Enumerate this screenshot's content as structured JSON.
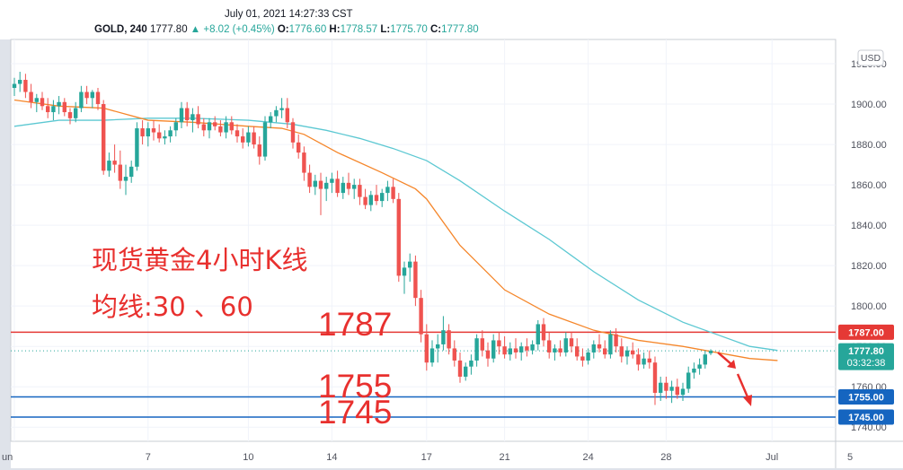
{
  "header": {
    "datetime": "July 01, 2021 14:27:33 CST",
    "symbol": "GOLD, 240",
    "last": "1777.80",
    "change": "▲ +8.02 (+0.45%)",
    "o_label": "O:",
    "o": "1776.60",
    "h_label": "H:",
    "h": "1778.57",
    "l_label": "L:",
    "l": "1775.70",
    "c_label": "C:",
    "c": "1777.80"
  },
  "currency_badge": "USD",
  "annotations": {
    "title": "现货黄金4小时K线",
    "subtitle": "均线:30 、60",
    "level_1787": "1787",
    "level_1755": "1755",
    "level_1745": "1745"
  },
  "colors": {
    "up": "#26a69a",
    "down": "#ef5350",
    "ma30": "#f5862a",
    "ma60": "#5cc8d2",
    "resistance": "#e53935",
    "support": "#1565c0",
    "annotation_text": "#e8302e"
  },
  "chart_data": {
    "type": "candlestick",
    "ylim": [
      1733,
      1932
    ],
    "y_ticks": [
      "1920.00",
      "1900.00",
      "1880.00",
      "1860.00",
      "1840.00",
      "1820.00",
      "1800.00",
      "1780.00",
      "1760.00",
      "1740.00"
    ],
    "x_ticks": [
      {
        "label": "un",
        "i": 0
      },
      {
        "label": "7",
        "i": 24
      },
      {
        "label": "10",
        "i": 42
      },
      {
        "label": "14",
        "i": 57
      },
      {
        "label": "17",
        "i": 74
      },
      {
        "label": "21",
        "i": 88
      },
      {
        "label": "24",
        "i": 103
      },
      {
        "label": "28",
        "i": 117
      },
      {
        "label": "Jul",
        "i": 136
      },
      {
        "label": "5",
        "i": 150
      }
    ],
    "candles": [
      [
        1908,
        1913,
        1904,
        1910
      ],
      [
        1910,
        1916,
        1906,
        1912
      ],
      [
        1912,
        1915,
        1903,
        1906
      ],
      [
        1906,
        1910,
        1898,
        1901
      ],
      [
        1901,
        1905,
        1896,
        1903
      ],
      [
        1903,
        1906,
        1897,
        1899
      ],
      [
        1899,
        1903,
        1893,
        1896
      ],
      [
        1896,
        1902,
        1892,
        1899
      ],
      [
        1899,
        1904,
        1895,
        1901
      ],
      [
        1901,
        1903,
        1894,
        1896
      ],
      [
        1896,
        1898,
        1890,
        1893
      ],
      [
        1893,
        1901,
        1891,
        1898
      ],
      [
        1898,
        1909,
        1896,
        1906
      ],
      [
        1906,
        1909,
        1900,
        1903
      ],
      [
        1903,
        1907,
        1898,
        1906
      ],
      [
        1906,
        1908,
        1897,
        1900
      ],
      [
        1900,
        1902,
        1865,
        1867
      ],
      [
        1867,
        1876,
        1864,
        1872
      ],
      [
        1872,
        1880,
        1866,
        1870
      ],
      [
        1870,
        1877,
        1858,
        1862
      ],
      [
        1862,
        1870,
        1855,
        1864
      ],
      [
        1864,
        1872,
        1861,
        1869
      ],
      [
        1869,
        1891,
        1867,
        1888
      ],
      [
        1888,
        1892,
        1880,
        1884
      ],
      [
        1884,
        1891,
        1879,
        1888
      ],
      [
        1888,
        1892,
        1882,
        1886
      ],
      [
        1886,
        1890,
        1881,
        1883
      ],
      [
        1883,
        1887,
        1880,
        1884
      ],
      [
        1884,
        1889,
        1881,
        1887
      ],
      [
        1887,
        1893,
        1884,
        1891
      ],
      [
        1891,
        1901,
        1888,
        1898
      ],
      [
        1898,
        1901,
        1889,
        1892
      ],
      [
        1892,
        1898,
        1886,
        1895
      ],
      [
        1895,
        1899,
        1888,
        1890
      ],
      [
        1890,
        1893,
        1884,
        1887
      ],
      [
        1887,
        1893,
        1883,
        1891
      ],
      [
        1891,
        1894,
        1887,
        1889
      ],
      [
        1889,
        1892,
        1884,
        1886
      ],
      [
        1886,
        1894,
        1883,
        1891
      ],
      [
        1891,
        1894,
        1885,
        1887
      ],
      [
        1887,
        1890,
        1881,
        1884
      ],
      [
        1884,
        1888,
        1878,
        1881
      ],
      [
        1881,
        1889,
        1879,
        1886
      ],
      [
        1886,
        1889,
        1878,
        1880
      ],
      [
        1880,
        1884,
        1870,
        1874
      ],
      [
        1874,
        1894,
        1872,
        1891
      ],
      [
        1891,
        1896,
        1888,
        1894
      ],
      [
        1894,
        1899,
        1891,
        1897
      ],
      [
        1897,
        1903,
        1893,
        1898
      ],
      [
        1898,
        1903,
        1888,
        1891
      ],
      [
        1891,
        1893,
        1878,
        1881
      ],
      [
        1881,
        1885,
        1873,
        1876
      ],
      [
        1876,
        1879,
        1862,
        1866
      ],
      [
        1866,
        1870,
        1856,
        1859
      ],
      [
        1859,
        1865,
        1855,
        1862
      ],
      [
        1862,
        1866,
        1845,
        1858
      ],
      [
        1858,
        1864,
        1852,
        1861
      ],
      [
        1861,
        1866,
        1856,
        1863
      ],
      [
        1863,
        1867,
        1854,
        1856
      ],
      [
        1856,
        1864,
        1853,
        1861
      ],
      [
        1861,
        1866,
        1855,
        1858
      ],
      [
        1858,
        1863,
        1853,
        1860
      ],
      [
        1860,
        1863,
        1850,
        1854
      ],
      [
        1854,
        1858,
        1848,
        1850
      ],
      [
        1850,
        1857,
        1847,
        1855
      ],
      [
        1855,
        1860,
        1850,
        1852
      ],
      [
        1852,
        1858,
        1849,
        1856
      ],
      [
        1856,
        1862,
        1852,
        1859
      ],
      [
        1859,
        1863,
        1851,
        1853
      ],
      [
        1853,
        1856,
        1812,
        1815
      ],
      [
        1815,
        1822,
        1806,
        1819
      ],
      [
        1819,
        1826,
        1812,
        1822
      ],
      [
        1822,
        1825,
        1800,
        1804
      ],
      [
        1804,
        1808,
        1782,
        1786
      ],
      [
        1786,
        1791,
        1768,
        1772
      ],
      [
        1772,
        1783,
        1770,
        1779
      ],
      [
        1779,
        1786,
        1772,
        1781
      ],
      [
        1781,
        1795,
        1778,
        1788
      ],
      [
        1788,
        1791,
        1776,
        1779
      ],
      [
        1779,
        1783,
        1770,
        1773
      ],
      [
        1773,
        1777,
        1762,
        1765
      ],
      [
        1765,
        1772,
        1763,
        1770
      ],
      [
        1770,
        1776,
        1766,
        1773
      ],
      [
        1773,
        1786,
        1770,
        1784
      ],
      [
        1784,
        1788,
        1775,
        1778
      ],
      [
        1778,
        1782,
        1770,
        1774
      ],
      [
        1774,
        1786,
        1772,
        1783
      ],
      [
        1783,
        1787,
        1776,
        1780
      ],
      [
        1780,
        1785,
        1774,
        1776
      ],
      [
        1776,
        1782,
        1773,
        1779
      ],
      [
        1779,
        1784,
        1774,
        1777
      ],
      [
        1777,
        1782,
        1773,
        1780
      ],
      [
        1780,
        1784,
        1775,
        1778
      ],
      [
        1778,
        1783,
        1776,
        1781
      ],
      [
        1781,
        1793,
        1778,
        1791
      ],
      [
        1791,
        1794,
        1780,
        1783
      ],
      [
        1783,
        1787,
        1774,
        1777
      ],
      [
        1777,
        1781,
        1773,
        1779
      ],
      [
        1779,
        1783,
        1775,
        1777
      ],
      [
        1777,
        1787,
        1775,
        1784
      ],
      [
        1784,
        1787,
        1777,
        1780
      ],
      [
        1780,
        1784,
        1773,
        1775
      ],
      [
        1775,
        1779,
        1770,
        1773
      ],
      [
        1773,
        1779,
        1771,
        1777
      ],
      [
        1777,
        1783,
        1774,
        1781
      ],
      [
        1781,
        1786,
        1777,
        1779
      ],
      [
        1779,
        1783,
        1774,
        1776
      ],
      [
        1776,
        1788,
        1774,
        1786
      ],
      [
        1786,
        1789,
        1777,
        1780
      ],
      [
        1780,
        1784,
        1772,
        1775
      ],
      [
        1775,
        1780,
        1771,
        1778
      ],
      [
        1778,
        1782,
        1774,
        1776
      ],
      [
        1776,
        1779,
        1768,
        1771
      ],
      [
        1771,
        1777,
        1769,
        1774
      ],
      [
        1774,
        1778,
        1769,
        1772
      ],
      [
        1772,
        1775,
        1751,
        1757
      ],
      [
        1757,
        1765,
        1753,
        1762
      ],
      [
        1762,
        1765,
        1754,
        1758
      ],
      [
        1758,
        1763,
        1752,
        1760
      ],
      [
        1760,
        1764,
        1754,
        1756
      ],
      [
        1756,
        1762,
        1753,
        1759
      ],
      [
        1759,
        1770,
        1757,
        1767
      ],
      [
        1767,
        1772,
        1764,
        1769
      ],
      [
        1769,
        1774,
        1766,
        1771
      ],
      [
        1771,
        1778,
        1769,
        1776
      ],
      [
        1776.6,
        1778.57,
        1775.7,
        1777.8
      ]
    ],
    "ma30": [
      [
        0,
        1902
      ],
      [
        8,
        1899
      ],
      [
        16,
        1898
      ],
      [
        24,
        1892
      ],
      [
        32,
        1891
      ],
      [
        42,
        1889
      ],
      [
        48,
        1888
      ],
      [
        52,
        1885
      ],
      [
        58,
        1876
      ],
      [
        66,
        1866
      ],
      [
        72,
        1858
      ],
      [
        74,
        1853
      ],
      [
        80,
        1830
      ],
      [
        88,
        1808
      ],
      [
        96,
        1796
      ],
      [
        104,
        1788
      ],
      [
        112,
        1783
      ],
      [
        120,
        1780
      ],
      [
        126,
        1777
      ],
      [
        132,
        1774
      ],
      [
        137,
        1773
      ]
    ],
    "ma60": [
      [
        0,
        1889
      ],
      [
        8,
        1892
      ],
      [
        16,
        1892
      ],
      [
        24,
        1893
      ],
      [
        32,
        1893
      ],
      [
        42,
        1892
      ],
      [
        50,
        1890
      ],
      [
        56,
        1887
      ],
      [
        62,
        1883
      ],
      [
        68,
        1878
      ],
      [
        74,
        1872
      ],
      [
        80,
        1862
      ],
      [
        88,
        1847
      ],
      [
        96,
        1833
      ],
      [
        104,
        1817
      ],
      [
        112,
        1803
      ],
      [
        120,
        1792
      ],
      [
        126,
        1786
      ],
      [
        132,
        1780
      ],
      [
        137,
        1778
      ]
    ],
    "levels": [
      {
        "price": 1787.0,
        "label": "1787.00",
        "kind": "resistance"
      },
      {
        "price": 1755.0,
        "label": "1755.00",
        "kind": "support"
      },
      {
        "price": 1745.0,
        "label": "1745.00",
        "kind": "support"
      }
    ],
    "last_price": {
      "price": 1777.8,
      "label": "1777.80",
      "countdown": "03:32:38"
    },
    "projection": "two red arrows pointing down-right after the last candle"
  }
}
